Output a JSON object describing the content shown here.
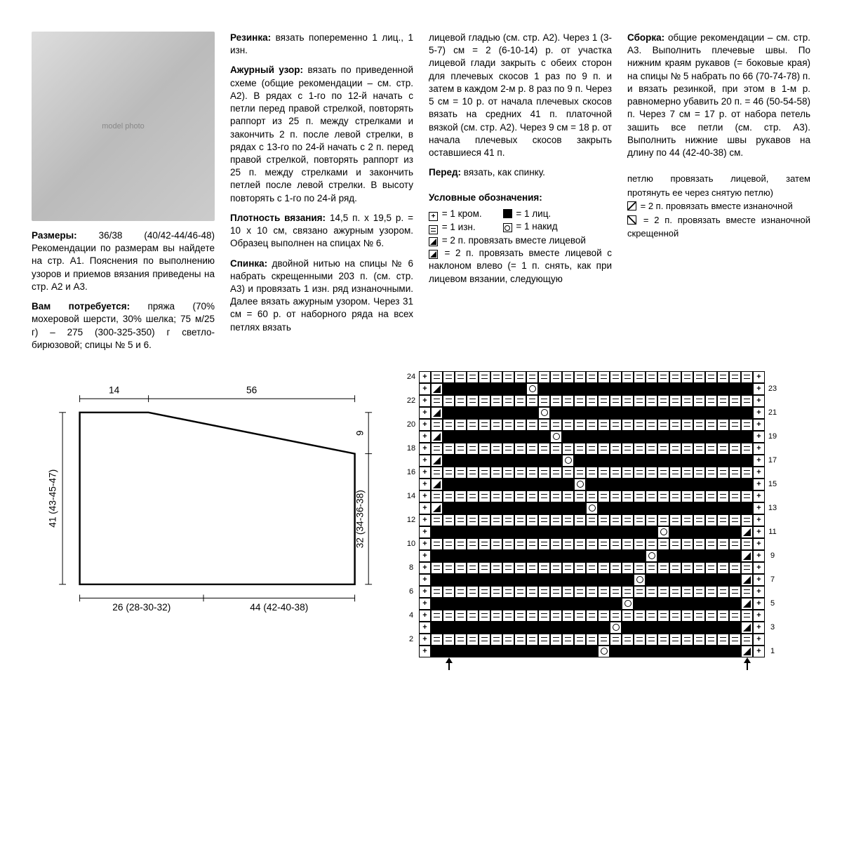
{
  "photo_alt": "model photo",
  "col1": {
    "sizes_label": "Размеры:",
    "sizes": "36/38 (40/42-44/46-48)",
    "sizes_note": "Рекомендации по размерам вы найдете на стр. А1. Пояснения по выполнению узоров и приемов вязания приведены на стр. А2 и А3.",
    "materials_label": "Вам потребуется:",
    "materials": "пряжа (70% мохеровой шерсти, 30% шелка; 75 м/25 г) – 275 (300-325-350) г светло-бирюзовой; спицы № 5 и 6."
  },
  "col2": {
    "rib_label": "Резинка:",
    "rib": "вязать попеременно 1 лиц., 1 изн.",
    "lace_label": "Ажурный узор:",
    "lace": "вязать по приведенной схеме (общие рекомендации – см. стр. А2). В рядах с 1-го по 12-й начать с петли перед правой стрелкой, повторять раппорт из 25 п. между стрелками и закончить 2 п. после левой стрелки, в рядах с 13-го по 24-й начать с 2 п. перед правой стрелкой, повторять раппорт из 25 п. между стрелками и закончить петлей после левой стрелки. В высоту повторять с 1-го по 24-й ряд.",
    "gauge_label": "Плотность вязания:",
    "gauge": "14,5 п. x 19,5 р. = 10 x 10 см, связано ажурным узором. Образец выполнен на спицах № 6.",
    "back_label": "Спинка:",
    "back": "двойной нитью на спицы № 6 набрать скрещенными 203 п. (см. стр. А3) и провязать 1 изн. ряд изнаночными. Далее вязать ажурным узором. Через 31 см = 60 р. от наборного ряда на всех петлях вязать"
  },
  "col3": {
    "back_cont": "лицевой гладью (см. стр. А2). Через 1 (3-5-7) см = 2 (6-10-14) р. от участка лицевой глади закрыть с обеих сторон для плечевых скосов 1 раз по 9 п. и затем в каждом 2-м р. 8 раз по 9 п. Через 5 см = 10 р. от начала плечевых скосов вязать на средних 41 п. платочной вязкой (см. стр. А2). Через 9 см = 18 р. от начала плечевых скосов закрыть оставшиеся 41 п.",
    "front_label": "Перед:",
    "front": "вязать, как спинку."
  },
  "col4": {
    "assembly_label": "Сборка:",
    "assembly": "общие рекомендации – см. стр. А3. Выполнить плечевые швы. По нижним краям рукавов (= боковые края) на спицы № 5 набрать по 66 (70-74-78) п. и вязать резинкой, при этом в 1-м р. равномерно убавить 20 п. = 46 (50-54-58) п. Через 7 см = 17 р. от набора петель зашить все петли (см. стр. А3). Выполнить нижние швы рукавов на длину по 44 (42-40-38) см."
  },
  "legend": {
    "title": "Условные обозначения:",
    "edge": "= 1 кром.",
    "purl": "= 1 изн.",
    "knit": "= 1 лиц.",
    "yo": "= 1 накид",
    "k2r": "= 2 п. провязать вместе лицевой",
    "k2l": "= 2 п. провязать вместе лицевой с наклоном влево (= 1 п. снять, как при лицевом вязании, следующую",
    "k2l_cont": "петлю провязать лицевой, затем протянуть ее через снятую петлю)",
    "p2r": "= 2 п. провязать вместе изнаночной",
    "p2l": "= 2 п. провязать вместе изнаночной скрещенной"
  },
  "schematic": {
    "top_left": "14",
    "top_right": "56",
    "left": "41 (43-45-47)",
    "right_upper": "9",
    "right_lower": "32 (34-36-38)",
    "bottom_left": "26 (28-30-32)",
    "bottom_right": "44 (42-40-38)",
    "stroke": "#000",
    "stroke_width": 2.5
  },
  "chart": {
    "rows": 24,
    "cols": 29,
    "left_labels": [
      null,
      2,
      null,
      4,
      null,
      6,
      null,
      8,
      null,
      10,
      null,
      12,
      null,
      14,
      null,
      16,
      null,
      18,
      null,
      20,
      null,
      22,
      null,
      24
    ],
    "right_labels": [
      1,
      null,
      3,
      null,
      5,
      null,
      7,
      null,
      9,
      null,
      11,
      null,
      13,
      null,
      15,
      null,
      17,
      null,
      19,
      null,
      21,
      null,
      23,
      null
    ],
    "arrow_left_col": 2,
    "arrow_right_col": 27,
    "symbols": {
      "E": "sym-edge",
      "K": "sym-knit",
      "P": "sym-purl",
      "O": "sym-yo",
      "R": "sym-k2r",
      "L": "sym-k2l",
      "S": "sym-p2r",
      "T": "sym-p2l"
    },
    "grid": [
      "E K K K K K K K K K K K K K K O K K K K K K K K K K K L E",
      "E P P P P P P P P P P P P P P P P P P P P P P P P P P P E",
      "E K K K K K K K K K K K K K K K O K K K K K K K K K K L E",
      "E P P P P P P P P P P P P P P P P P P P P P P P P P P P E",
      "E K K K K K K K K K K K K K K K K O K K K K K K K K K L E",
      "E P P P P P P P P P P P P P P P P P P P P P P P P P P P E",
      "E K K K K K K K K K K K K K K K K K O K K K K K K K K L E",
      "E P P P P P P P P P P P P P P P P P P P P P P P P P P P E",
      "E K K K K K K K K K K K K K K K K K K O K K K K K K K L E",
      "E P P P P P P P P P P P P P P P P P P P P P P P P P P P E",
      "E K K K K K K K K K K K K K K K K K K K O K K K K K K L E",
      "E P P P P P P P P P P P P P P P P P P P P P P P P P P P E",
      "E R K K K K K K K K K K K K O K K K K K K K K K K K K K E",
      "E P P P P P P P P P P P P P P P P P P P P P P P P P P P E",
      "E R K K K K K K K K K K K O K K K K K K K K K K K K K K E",
      "E P P P P P P P P P P P P P P P P P P P P P P P P P P P E",
      "E R K K K K K K K K K K O K K K K K K K K K K K K K K K E",
      "E P P P P P P P P P P P P P P P P P P P P P P P P P P P E",
      "E R K K K K K K K K K O K K K K K K K K K K K K K K K K E",
      "E P P P P P P P P P P P P P P P P P P P P P P P P P P P E",
      "E R K K K K K K K K O K K K K K K K K K K K K K K K K K E",
      "E P P P P P P P P P P P P P P P P P P P P P P P P P P P E",
      "E R K K K K K K K O K K K K K K K K K K K K K K K K K K E",
      "E P P P P P P P P P P P P P P P P P P P P P P P P P P P E"
    ]
  }
}
